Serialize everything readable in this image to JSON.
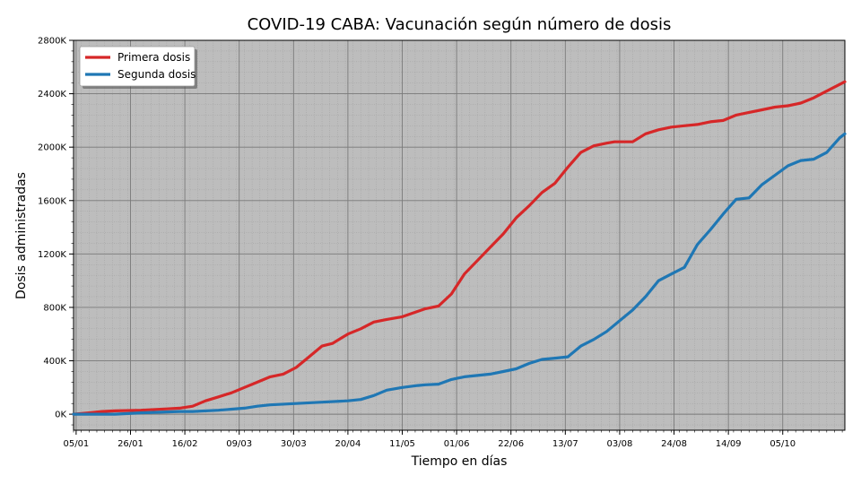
{
  "chart_data": {
    "type": "line",
    "title": "COVID-19 CABA: Vacunación según número de dosis",
    "xlabel": "Tiempo en días",
    "ylabel": "Dosis administradas",
    "x_tick_labels": [
      "05/01",
      "26/01",
      "16/02",
      "09/03",
      "30/03",
      "20/04",
      "11/05",
      "01/06",
      "22/06",
      "13/07",
      "03/08",
      "24/08",
      "14/09",
      "05/10"
    ],
    "x_tick_days": [
      5,
      26,
      47,
      68,
      89,
      110,
      131,
      152,
      173,
      194,
      215,
      236,
      257,
      278
    ],
    "x_range_days": [
      4,
      302
    ],
    "y_ticks": [
      0,
      400,
      800,
      1200,
      1600,
      2000,
      2400,
      2800
    ],
    "y_tick_labels": [
      "0K",
      "400K",
      "800K",
      "1200K",
      "1600K",
      "2000K",
      "2400K",
      "2800K"
    ],
    "ylim": [
      -120,
      2800
    ],
    "y_units": "miles de dosis",
    "grid": true,
    "legend_position": "top-left",
    "colors": {
      "plot_bg": "#bdbdbd",
      "grid_major": "#7a7a7a",
      "grid_minor": "#9e9e9e"
    },
    "series": [
      {
        "name": "Primera dosis",
        "color": "#d62728",
        "x": [
          4,
          10,
          15,
          20,
          30,
          40,
          45,
          50,
          55,
          60,
          65,
          70,
          75,
          80,
          85,
          90,
          95,
          100,
          104,
          110,
          115,
          120,
          125,
          131,
          137,
          140,
          145,
          150,
          155,
          160,
          165,
          170,
          175,
          180,
          185,
          190,
          195,
          200,
          205,
          210,
          213,
          215,
          220,
          225,
          230,
          235,
          240,
          245,
          250,
          255,
          260,
          265,
          270,
          275,
          280,
          285,
          290,
          295,
          300,
          302
        ],
        "y": [
          0,
          10,
          20,
          25,
          30,
          40,
          45,
          60,
          100,
          130,
          160,
          200,
          240,
          280,
          300,
          350,
          430,
          510,
          530,
          600,
          640,
          690,
          710,
          730,
          770,
          790,
          810,
          900,
          1050,
          1150,
          1250,
          1350,
          1470,
          1560,
          1660,
          1730,
          1850,
          1960,
          2010,
          2030,
          2040,
          2040,
          2040,
          2100,
          2130,
          2150,
          2160,
          2170,
          2190,
          2200,
          2240,
          2260,
          2280,
          2300,
          2310,
          2330,
          2370,
          2420,
          2470,
          2490
        ]
      },
      {
        "name": "Segunda dosis",
        "color": "#1f77b4",
        "x": [
          4,
          20,
          30,
          45,
          50,
          60,
          70,
          75,
          80,
          90,
          100,
          110,
          115,
          120,
          125,
          131,
          137,
          140,
          145,
          150,
          155,
          160,
          165,
          170,
          175,
          180,
          185,
          190,
          195,
          200,
          205,
          210,
          215,
          220,
          225,
          230,
          235,
          240,
          245,
          250,
          255,
          260,
          265,
          270,
          275,
          280,
          285,
          290,
          295,
          300,
          302
        ],
        "y": [
          0,
          0,
          10,
          20,
          20,
          30,
          45,
          60,
          70,
          80,
          90,
          100,
          110,
          140,
          180,
          200,
          215,
          220,
          225,
          260,
          280,
          290,
          300,
          320,
          340,
          380,
          410,
          420,
          430,
          510,
          560,
          620,
          700,
          780,
          880,
          1000,
          1050,
          1100,
          1270,
          1380,
          1500,
          1610,
          1620,
          1720,
          1790,
          1860,
          1900,
          1910,
          1960,
          2070,
          2100
        ]
      }
    ]
  }
}
